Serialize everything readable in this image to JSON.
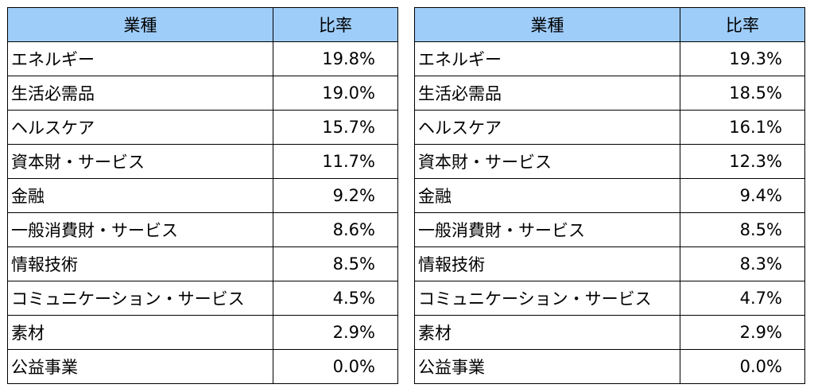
{
  "tables": [
    {
      "header": [
        "業種",
        "比率"
      ],
      "rows": [
        [
          "エネルギー",
          "19.8%"
        ],
        [
          "生活必需品",
          "19.0%"
        ],
        [
          "ヘルスケア",
          "15.7%"
        ],
        [
          "資本財・サービス",
          "11.7%"
        ],
        [
          "金融",
          "9.2%"
        ],
        [
          "一般消費財・サービス",
          "8.6%"
        ],
        [
          "情報技術",
          "8.5%"
        ],
        [
          "コミュニケーション・サービス",
          "4.5%"
        ],
        [
          "素材",
          "2.9%"
        ],
        [
          "公益事業",
          "0.0%"
        ]
      ]
    },
    {
      "header": [
        "業種",
        "比率"
      ],
      "rows": [
        [
          "エネルギー",
          "19.3%"
        ],
        [
          "生活必需品",
          "18.5%"
        ],
        [
          "ヘルスケア",
          "16.1%"
        ],
        [
          "資本財・サービス",
          "12.3%"
        ],
        [
          "金融",
          "9.4%"
        ],
        [
          "一般消費財・サービス",
          "8.5%"
        ],
        [
          "情報技術",
          "8.3%"
        ],
        [
          "コミュニケーション・サービス",
          "4.7%"
        ],
        [
          "素材",
          "2.9%"
        ],
        [
          "公益事業",
          "0.0%"
        ]
      ]
    }
  ]
}
